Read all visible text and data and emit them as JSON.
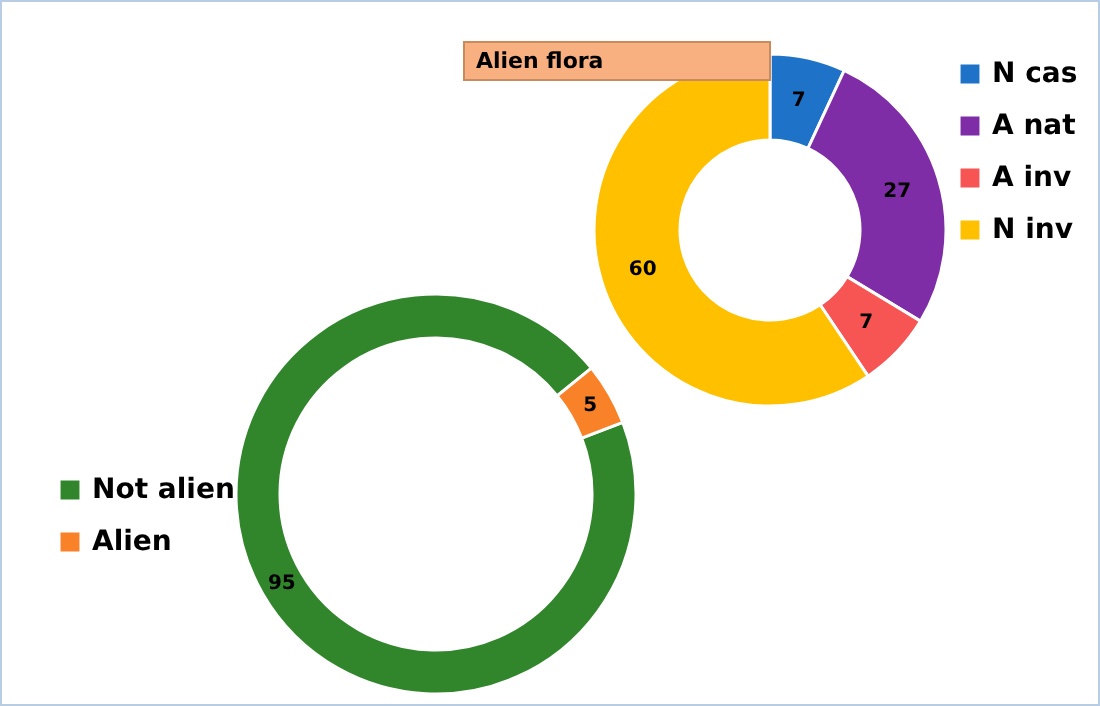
{
  "chart_data": [
    {
      "type": "donut",
      "categories": [
        "Not alien",
        "Alien"
      ],
      "values": [
        95,
        5
      ],
      "colors": [
        "#31862c",
        "#f98128"
      ],
      "data_labels": true,
      "legend": "left"
    },
    {
      "type": "donut",
      "title": "Alien flora",
      "categories": [
        "N cas",
        "A nat",
        "A inv",
        "N inv"
      ],
      "values": [
        7,
        27,
        7,
        60
      ],
      "colors": [
        "#1e73c8",
        "#7e2da6",
        "#f75454",
        "#ffc000"
      ],
      "data_labels": true,
      "legend": "right"
    }
  ]
}
